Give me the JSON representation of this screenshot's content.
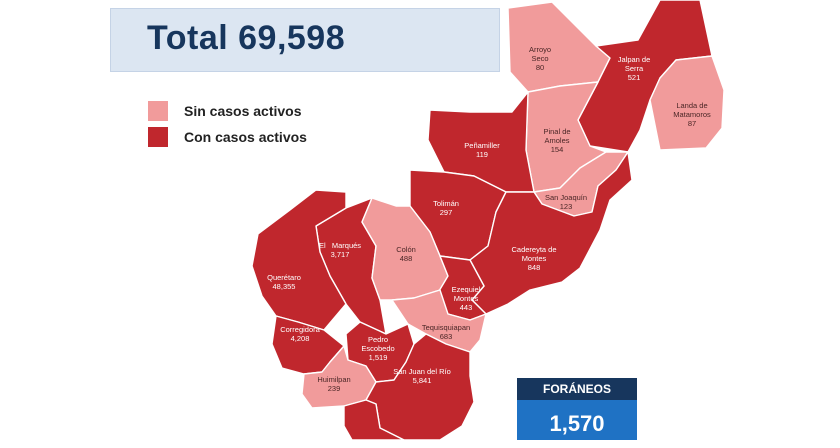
{
  "total": {
    "text": "Total 69,598"
  },
  "legend": [
    {
      "label": "Sin casos activos",
      "color": "#f19b9b"
    },
    {
      "label": "Con casos activos",
      "color": "#c0272d"
    }
  ],
  "colors": {
    "active": "#c0272d",
    "inactive": "#f19b9b",
    "border": "#ffffff"
  },
  "municipalities": [
    {
      "id": "arroyo-seco",
      "name": [
        "Arroyo",
        "Seco"
      ],
      "value": "80",
      "status": "inactive"
    },
    {
      "id": "jalpan",
      "name": [
        "Jalpan de",
        "Serra"
      ],
      "value": "521",
      "status": "active"
    },
    {
      "id": "landa",
      "name": [
        "Landa de",
        "Matamoros"
      ],
      "value": "87",
      "status": "inactive"
    },
    {
      "id": "pinal",
      "name": [
        "Pinal de",
        "Amoles"
      ],
      "value": "154",
      "status": "inactive"
    },
    {
      "id": "peñamiller",
      "name": [
        "Peñamiller"
      ],
      "value": "119",
      "status": "active"
    },
    {
      "id": "san-joaquin",
      "name": [
        "San Joaquín"
      ],
      "value": "123",
      "status": "inactive"
    },
    {
      "id": "tolimán",
      "name": [
        "Tolimán"
      ],
      "value": "297",
      "status": "active"
    },
    {
      "id": "cadereyta",
      "name": [
        "Cadereyta de",
        "Montes"
      ],
      "value": "848",
      "status": "active"
    },
    {
      "id": "el-marques",
      "name": [
        "El   Marqués"
      ],
      "value": "3,717",
      "status": "active"
    },
    {
      "id": "colón",
      "name": [
        "Colón"
      ],
      "value": "488",
      "status": "inactive"
    },
    {
      "id": "querétaro",
      "name": [
        "Querétaro"
      ],
      "value": "48,355",
      "status": "active"
    },
    {
      "id": "ezequiel",
      "name": [
        "Ezequiel",
        "Montes"
      ],
      "value": "443",
      "status": "active"
    },
    {
      "id": "tequisquiapan",
      "name": [
        "Tequisquiapan"
      ],
      "value": "683",
      "status": "inactive"
    },
    {
      "id": "corregidora",
      "name": [
        "Corregidora"
      ],
      "value": "4,208",
      "status": "active"
    },
    {
      "id": "pedro-escobedo",
      "name": [
        "Pedro",
        "Escobedo"
      ],
      "value": "1,519",
      "status": "active"
    },
    {
      "id": "huimilpan",
      "name": [
        "Huimilpan"
      ],
      "value": "239",
      "status": "inactive"
    },
    {
      "id": "san-juan-del-rio",
      "name": [
        "San Juan del Río"
      ],
      "value": "5,841",
      "status": "active"
    },
    {
      "id": "amealco",
      "name": [],
      "value": "",
      "status": "active"
    }
  ],
  "foraneos": {
    "label": "FORÁNEOS",
    "value": "1,570"
  }
}
